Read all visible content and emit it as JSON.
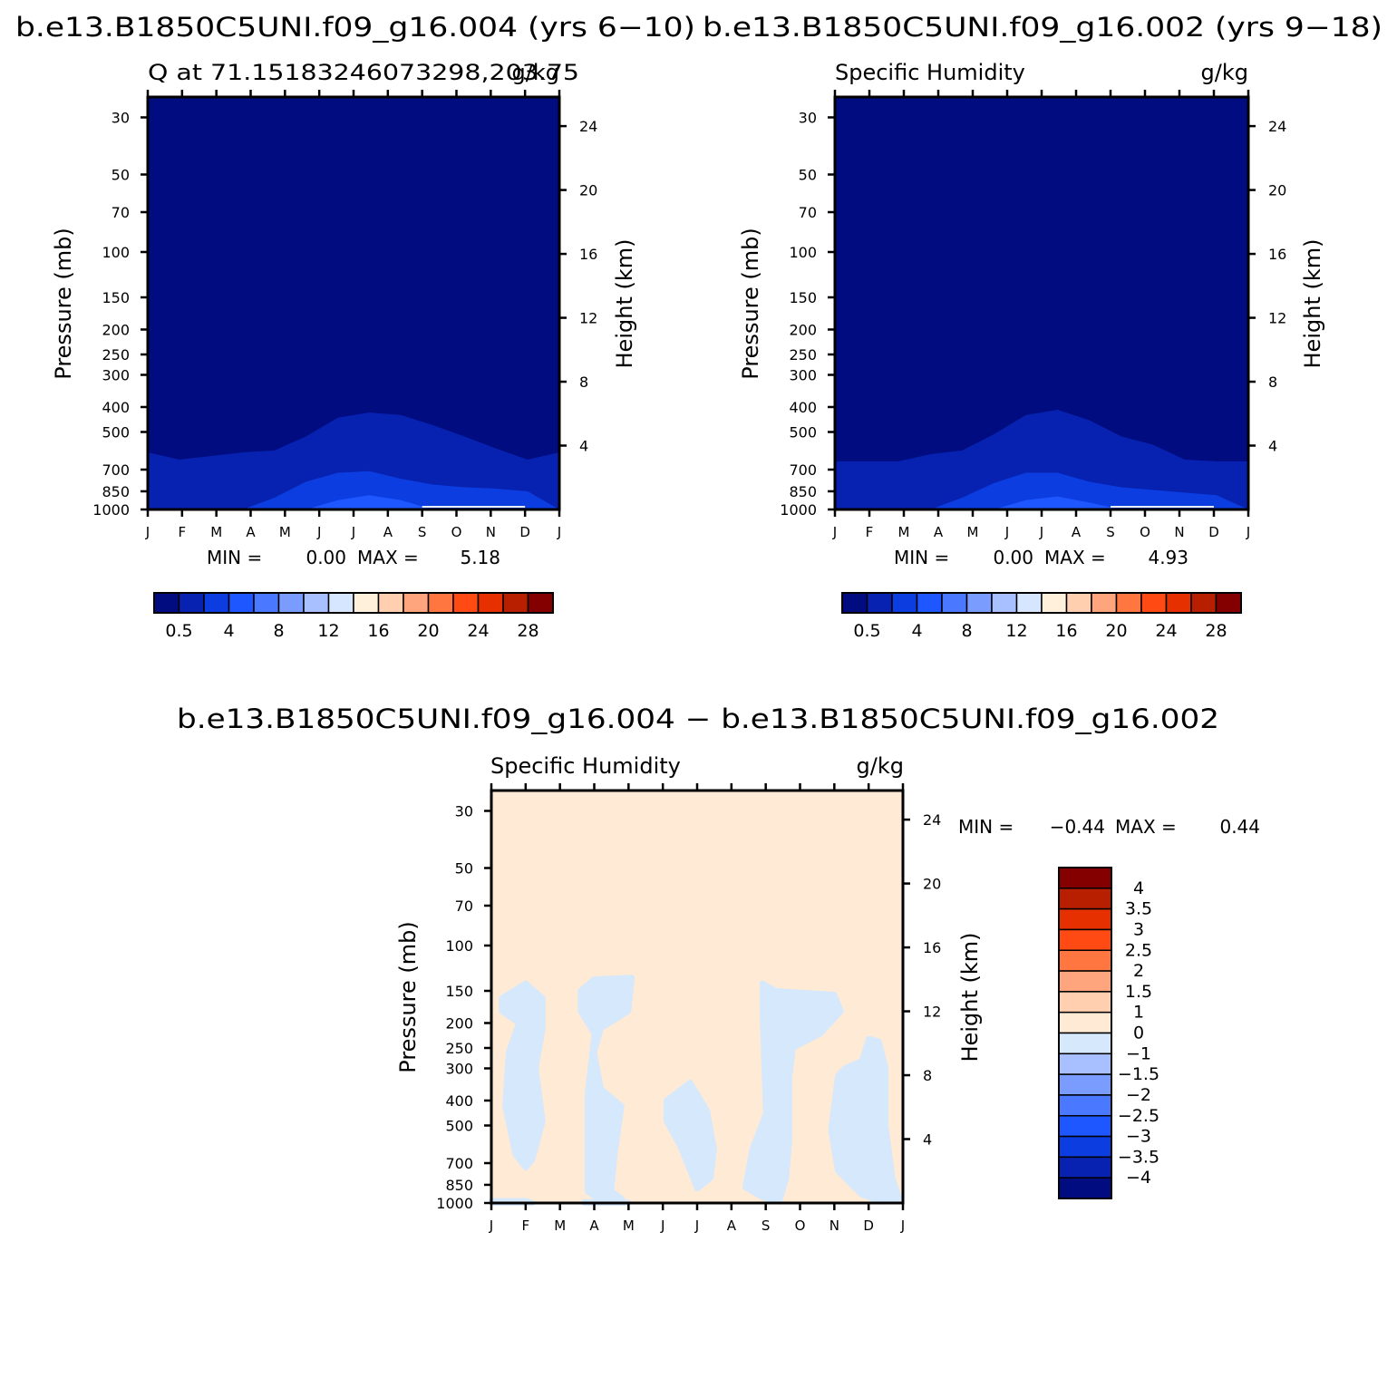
{
  "colors": {
    "main_scale": [
      "#000c80",
      "#0722b0",
      "#0c3de0",
      "#1e57ff",
      "#4a78ff",
      "#7a9cff",
      "#a8c0ff",
      "#d6e6ff",
      "#fff0dc",
      "#ffcfb0",
      "#ffa57e",
      "#ff7640",
      "#ff4a14",
      "#e63000",
      "#b81e00",
      "#840000"
    ],
    "diff_scale": [
      "#000c80",
      "#0722b0",
      "#0c3de0",
      "#1e57ff",
      "#4a78ff",
      "#7a9cff",
      "#a8c0ff",
      "#d6e8fb",
      "#ffead6",
      "#ffcfb0",
      "#ffa57e",
      "#ff7640",
      "#ff4a14",
      "#e63000",
      "#b81e00",
      "#840000"
    ]
  },
  "chart_data": [
    {
      "type": "heatmap",
      "panel": "top-left",
      "header": "b.e13.B1850C5UNI.f09_g16.004 (yrs 6−10)",
      "title": "Q at 71.15183246073298,203.75",
      "units": "g/kg",
      "ylabel": "Pressure (mb)",
      "y2label": "Height (km)",
      "x_ticks": [
        "J",
        "F",
        "M",
        "A",
        "M",
        "J",
        "J",
        "A",
        "S",
        "O",
        "N",
        "D",
        "J"
      ],
      "y_ticks": [
        30,
        50,
        70,
        100,
        150,
        200,
        250,
        300,
        400,
        500,
        700,
        850,
        1000
      ],
      "y2_ticks": [
        4,
        8,
        12,
        16,
        20,
        24
      ],
      "ylim": [
        30,
        1000
      ],
      "y_scale": "log",
      "min_label": "MIN =",
      "min_value": "0.00",
      "max_label": "MAX =",
      "max_value": "5.18",
      "colorbar_labels": [
        "0.5",
        "4",
        "8",
        "12",
        "16",
        "20",
        "24",
        "28"
      ],
      "contour_levels": [
        0.5,
        1,
        2,
        3,
        4
      ],
      "contour_boundaries_hpa": [
        [
          600,
          640,
          620,
          600,
          590,
          520,
          440,
          420,
          430,
          470,
          520,
          580,
          640,
          600
        ],
        [
          1000,
          1000,
          1000,
          1000,
          900,
          780,
          720,
          710,
          760,
          800,
          820,
          830,
          850,
          1000
        ],
        [
          1000,
          1000,
          1000,
          1000,
          1000,
          1000,
          920,
          880,
          920,
          1000,
          1000,
          1000,
          1000,
          1000
        ]
      ],
      "colorbar": {
        "orientation": "horizontal",
        "placement": "bottom"
      }
    },
    {
      "type": "heatmap",
      "panel": "top-right",
      "header": "b.e13.B1850C5UNI.f09_g16.002 (yrs 9−18)",
      "title": "Specific Humidity",
      "units": "g/kg",
      "ylabel": "Pressure (mb)",
      "y2label": "Height (km)",
      "x_ticks": [
        "J",
        "F",
        "M",
        "A",
        "M",
        "J",
        "J",
        "A",
        "S",
        "O",
        "N",
        "D",
        "J"
      ],
      "y_ticks": [
        30,
        50,
        70,
        100,
        150,
        200,
        250,
        300,
        400,
        500,
        700,
        850,
        1000
      ],
      "y2_ticks": [
        4,
        8,
        12,
        16,
        20,
        24
      ],
      "ylim": [
        30,
        1000
      ],
      "y_scale": "log",
      "min_label": "MIN =",
      "min_value": "0.00",
      "max_label": "MAX =",
      "max_value": "4.93",
      "colorbar_labels": [
        "0.5",
        "4",
        "8",
        "12",
        "16",
        "20",
        "24",
        "28"
      ],
      "contour_levels": [
        0.5,
        1,
        2,
        3,
        4
      ],
      "contour_boundaries_hpa": [
        [
          650,
          650,
          650,
          610,
          590,
          510,
          430,
          410,
          450,
          520,
          560,
          640,
          650,
          650
        ],
        [
          1000,
          1000,
          1000,
          1000,
          900,
          790,
          720,
          720,
          780,
          820,
          840,
          860,
          880,
          1000
        ],
        [
          1000,
          1000,
          1000,
          1000,
          1000,
          1000,
          920,
          890,
          940,
          1000,
          1000,
          1000,
          1000,
          1000
        ]
      ],
      "colorbar": {
        "orientation": "horizontal",
        "placement": "bottom"
      }
    },
    {
      "type": "heatmap",
      "panel": "bottom",
      "header": "b.e13.B1850C5UNI.f09_g16.004 − b.e13.B1850C5UNI.f09_g16.002",
      "title": "Specific Humidity",
      "units": "g/kg",
      "ylabel": "Pressure (mb)",
      "y2label": "Height (km)",
      "x_ticks": [
        "J",
        "F",
        "M",
        "A",
        "M",
        "J",
        "J",
        "A",
        "S",
        "O",
        "N",
        "D",
        "J"
      ],
      "y_ticks": [
        30,
        50,
        70,
        100,
        150,
        200,
        250,
        300,
        400,
        500,
        700,
        850,
        1000
      ],
      "y2_ticks": [
        4,
        8,
        12,
        16,
        20,
        24
      ],
      "ylim": [
        30,
        1000
      ],
      "y_scale": "log",
      "min_label": "MIN =",
      "min_value": "−0.44",
      "max_label": "MAX =",
      "max_value": "0.44",
      "colorbar_labels": [
        "4",
        "3.5",
        "3",
        "2.5",
        "2",
        "1.5",
        "1",
        "0",
        "−1",
        "−1.5",
        "−2",
        "−2.5",
        "−3",
        "−3.5",
        "−4"
      ],
      "background_level": "0 to 1",
      "negative_region_level": "−1 to 0",
      "colorbar": {
        "orientation": "vertical",
        "placement": "right"
      }
    }
  ]
}
